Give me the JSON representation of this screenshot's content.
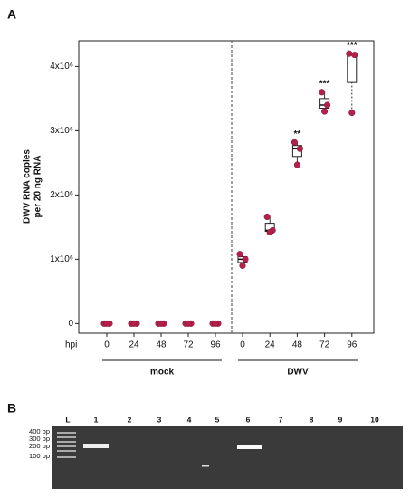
{
  "panel_labels": [
    "A",
    "B"
  ],
  "chart_data": {
    "type": "box",
    "ylabel": [
      "DWV RNA copies",
      "per 20 ng RNA"
    ],
    "xlabel": "hpi",
    "categories": [
      "0",
      "24",
      "48",
      "72",
      "96",
      "0",
      "24",
      "48",
      "72",
      "96"
    ],
    "groups": [
      "mock",
      "DWV"
    ],
    "ylim": [
      -150000,
      4400000
    ],
    "yticks": [
      0,
      {
        "value": 1000000,
        "label": "1x10⁶"
      },
      {
        "value": 2000000,
        "label": "2x10⁶"
      },
      {
        "value": 3000000,
        "label": "3x10⁶"
      },
      {
        "value": 4000000,
        "label": "4x10⁶"
      }
    ],
    "color": "#b5204a",
    "points": [
      [
        0,
        0,
        0
      ],
      [
        0,
        0,
        0
      ],
      [
        0,
        0,
        0
      ],
      [
        0,
        0,
        0
      ],
      [
        0,
        0,
        0
      ],
      [
        1080000,
        1000000,
        900000
      ],
      [
        1660000,
        1450000,
        1420000
      ],
      [
        2820000,
        2720000,
        2470000
      ],
      [
        3600000,
        3400000,
        3300000
      ],
      [
        4200000,
        4180000,
        3280000
      ]
    ],
    "boxes": [
      {
        "whisker_low": 0,
        "q1": 0,
        "median": 0,
        "q3": 0,
        "whisker_high": 0
      },
      {
        "whisker_low": 0,
        "q1": 0,
        "median": 0,
        "q3": 0,
        "whisker_high": 0
      },
      {
        "whisker_low": 0,
        "q1": 0,
        "median": 0,
        "q3": 0,
        "whisker_high": 0
      },
      {
        "whisker_low": 0,
        "q1": 0,
        "median": 0,
        "q3": 0,
        "whisker_high": 0
      },
      {
        "whisker_low": 0,
        "q1": 0,
        "median": 0,
        "q3": 0,
        "whisker_high": 0
      },
      {
        "whisker_low": 900000,
        "q1": 950000,
        "median": 1000000,
        "q3": 1040000,
        "whisker_high": 1080000
      },
      {
        "whisker_low": 1420000,
        "q1": 1435000,
        "median": 1450000,
        "q3": 1560000,
        "whisker_high": 1660000
      },
      {
        "whisker_low": 2470000,
        "q1": 2600000,
        "median": 2720000,
        "q3": 2770000,
        "whisker_high": 2820000
      },
      {
        "whisker_low": 3300000,
        "q1": 3350000,
        "median": 3400000,
        "q3": 3500000,
        "whisker_high": 3600000
      },
      {
        "whisker_low": 3280000,
        "q1": 3750000,
        "median": 4180000,
        "q3": 4200000,
        "whisker_high": 4200000
      }
    ],
    "annotations": [
      null,
      null,
      null,
      null,
      null,
      null,
      null,
      "**",
      "***",
      "***"
    ]
  },
  "gel": {
    "lanes": [
      "L",
      "1",
      "2",
      "3",
      "4",
      "5",
      "6",
      "7",
      "8",
      "9",
      "10"
    ],
    "markers": [
      "400 bp",
      "300 bp",
      "200 bp",
      "100 bp"
    ]
  }
}
